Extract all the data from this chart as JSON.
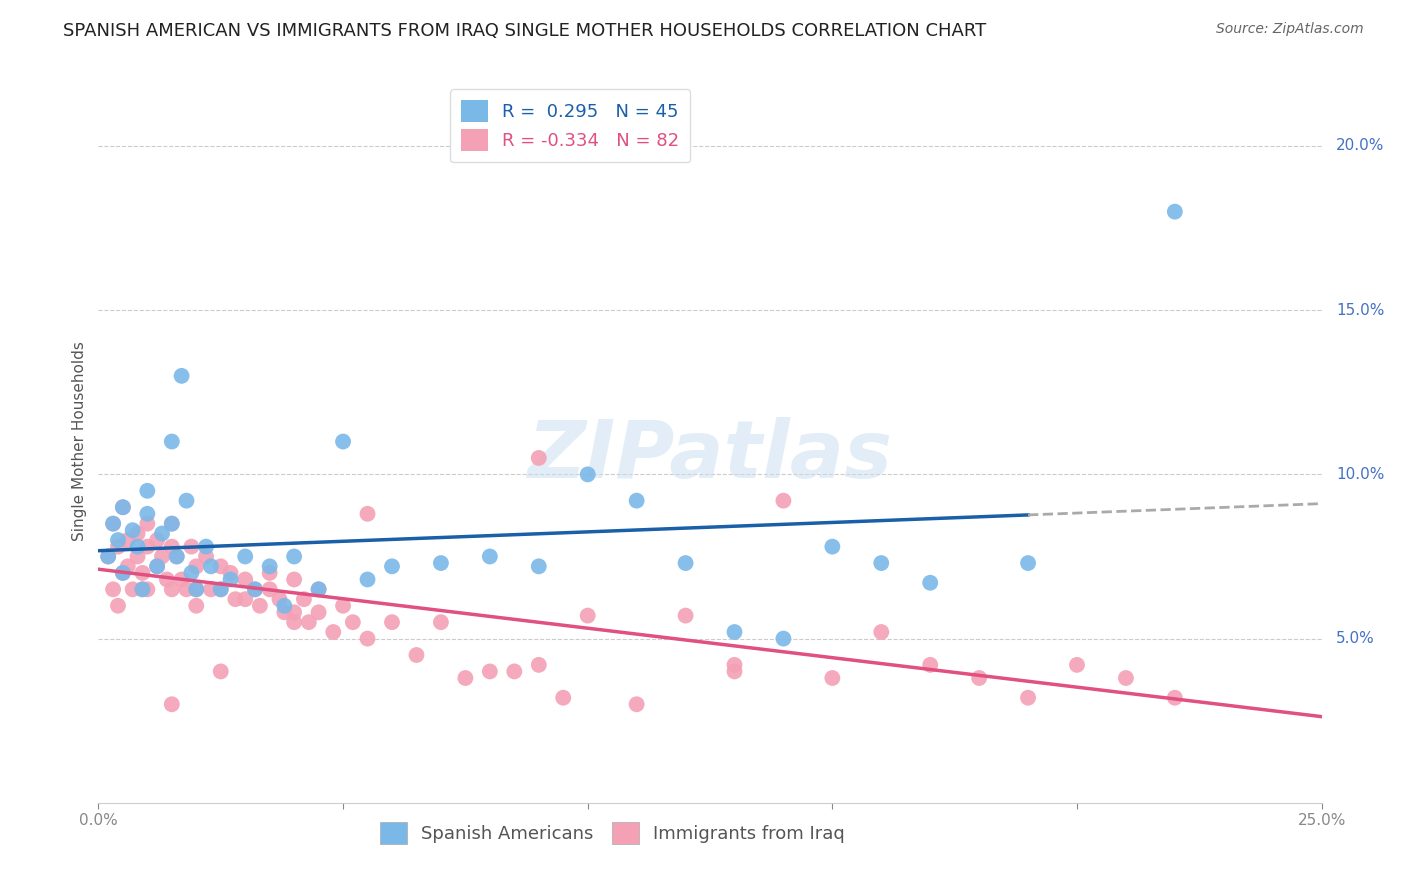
{
  "title": "SPANISH AMERICAN VS IMMIGRANTS FROM IRAQ SINGLE MOTHER HOUSEHOLDS CORRELATION CHART",
  "source": "Source: ZipAtlas.com",
  "ylabel": "Single Mother Households",
  "xlim": [
    0.0,
    0.25
  ],
  "ylim": [
    0.0,
    0.22
  ],
  "xticks": [
    0.0,
    0.05,
    0.1,
    0.15,
    0.2,
    0.25
  ],
  "xticklabels": [
    "0.0%",
    "",
    "",
    "",
    "",
    "25.0%"
  ],
  "yticks_right": [
    0.05,
    0.1,
    0.15,
    0.2
  ],
  "ytick_labels_right": [
    "5.0%",
    "10.0%",
    "15.0%",
    "20.0%"
  ],
  "blue_R": 0.295,
  "blue_N": 45,
  "pink_R": -0.334,
  "pink_N": 82,
  "blue_color": "#7ab8e8",
  "pink_color": "#f4a0b5",
  "line_blue": "#1a5fa8",
  "line_pink": "#e05080",
  "watermark": "ZIPatlas",
  "blue_scatter_x": [
    0.002,
    0.003,
    0.004,
    0.005,
    0.005,
    0.007,
    0.008,
    0.009,
    0.01,
    0.01,
    0.012,
    0.013,
    0.015,
    0.015,
    0.016,
    0.017,
    0.018,
    0.019,
    0.02,
    0.022,
    0.023,
    0.025,
    0.027,
    0.03,
    0.032,
    0.035,
    0.038,
    0.04,
    0.045,
    0.05,
    0.055,
    0.06,
    0.07,
    0.08,
    0.09,
    0.1,
    0.11,
    0.12,
    0.13,
    0.14,
    0.15,
    0.16,
    0.17,
    0.19,
    0.22
  ],
  "blue_scatter_y": [
    0.075,
    0.085,
    0.08,
    0.09,
    0.07,
    0.083,
    0.078,
    0.065,
    0.095,
    0.088,
    0.072,
    0.082,
    0.11,
    0.085,
    0.075,
    0.13,
    0.092,
    0.07,
    0.065,
    0.078,
    0.072,
    0.065,
    0.068,
    0.075,
    0.065,
    0.072,
    0.06,
    0.075,
    0.065,
    0.11,
    0.068,
    0.072,
    0.073,
    0.075,
    0.072,
    0.1,
    0.092,
    0.073,
    0.052,
    0.05,
    0.078,
    0.073,
    0.067,
    0.073,
    0.18
  ],
  "pink_scatter_x": [
    0.002,
    0.003,
    0.003,
    0.004,
    0.004,
    0.005,
    0.005,
    0.006,
    0.006,
    0.007,
    0.008,
    0.008,
    0.009,
    0.009,
    0.01,
    0.01,
    0.01,
    0.012,
    0.012,
    0.013,
    0.014,
    0.015,
    0.015,
    0.015,
    0.016,
    0.017,
    0.018,
    0.019,
    0.02,
    0.02,
    0.02,
    0.022,
    0.023,
    0.025,
    0.025,
    0.027,
    0.028,
    0.03,
    0.03,
    0.032,
    0.033,
    0.035,
    0.035,
    0.037,
    0.038,
    0.04,
    0.04,
    0.042,
    0.043,
    0.045,
    0.045,
    0.048,
    0.05,
    0.052,
    0.055,
    0.06,
    0.065,
    0.07,
    0.075,
    0.08,
    0.085,
    0.09,
    0.095,
    0.1,
    0.11,
    0.12,
    0.13,
    0.14,
    0.15,
    0.16,
    0.17,
    0.18,
    0.19,
    0.2,
    0.21,
    0.22,
    0.13,
    0.09,
    0.055,
    0.04,
    0.025,
    0.015
  ],
  "pink_scatter_y": [
    0.075,
    0.085,
    0.065,
    0.078,
    0.06,
    0.09,
    0.07,
    0.08,
    0.072,
    0.065,
    0.082,
    0.075,
    0.07,
    0.065,
    0.085,
    0.078,
    0.065,
    0.08,
    0.072,
    0.075,
    0.068,
    0.085,
    0.078,
    0.065,
    0.075,
    0.068,
    0.065,
    0.078,
    0.072,
    0.065,
    0.06,
    0.075,
    0.065,
    0.072,
    0.065,
    0.07,
    0.062,
    0.068,
    0.062,
    0.065,
    0.06,
    0.07,
    0.065,
    0.062,
    0.058,
    0.068,
    0.058,
    0.062,
    0.055,
    0.065,
    0.058,
    0.052,
    0.06,
    0.055,
    0.05,
    0.055,
    0.045,
    0.055,
    0.038,
    0.04,
    0.04,
    0.042,
    0.032,
    0.057,
    0.03,
    0.057,
    0.042,
    0.092,
    0.038,
    0.052,
    0.042,
    0.038,
    0.032,
    0.042,
    0.038,
    0.032,
    0.04,
    0.105,
    0.088,
    0.055,
    0.04,
    0.03
  ],
  "grid_color": "#cccccc",
  "background_color": "#ffffff",
  "title_fontsize": 13,
  "axis_label_fontsize": 11,
  "tick_fontsize": 11,
  "legend_fontsize": 13
}
